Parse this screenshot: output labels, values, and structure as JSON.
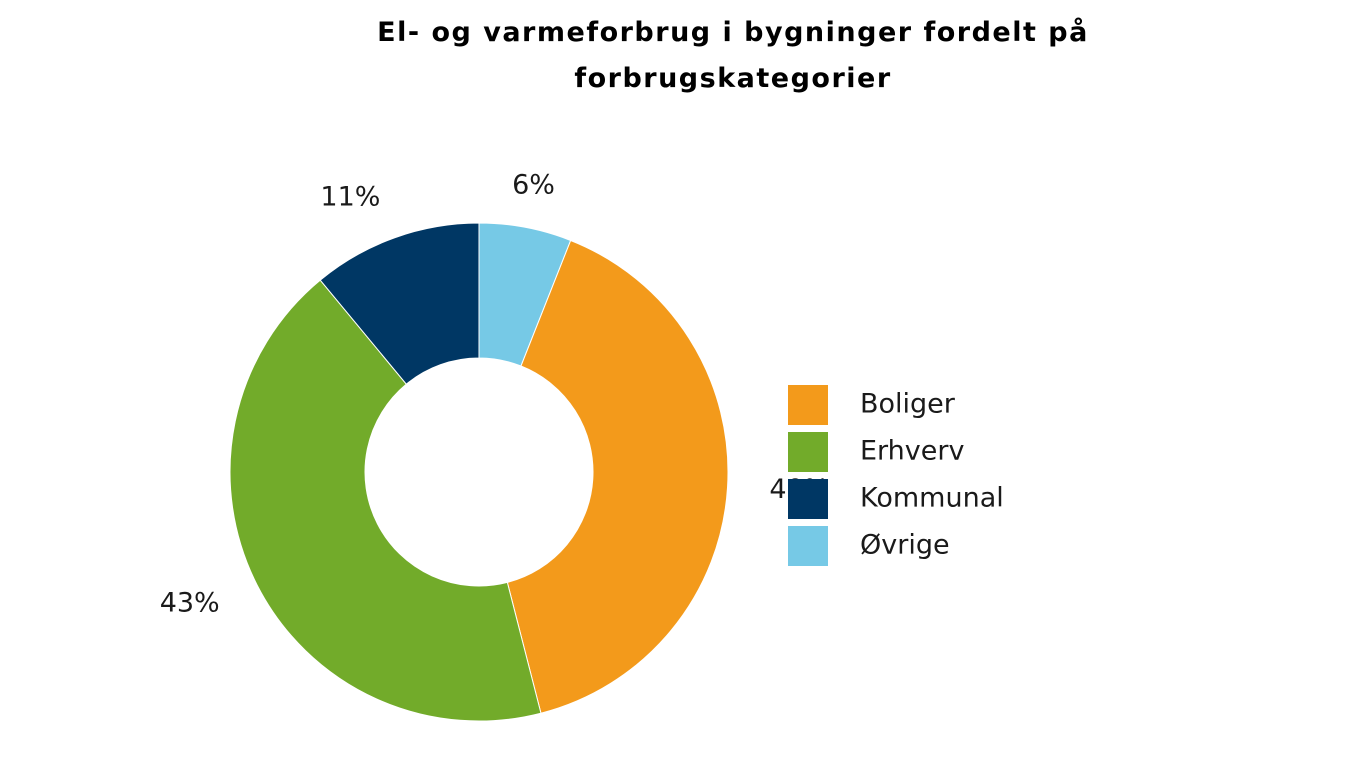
{
  "chart_data": {
    "type": "pie",
    "title": "El- og varmeforbrug i bygninger fordelt på forbrugskategorier",
    "categories": [
      "Boliger",
      "Erhverv",
      "Kommunal",
      "Øvrige"
    ],
    "values": [
      40,
      43,
      11,
      6
    ],
    "labels": [
      "40%",
      "43%",
      "11%",
      "6%"
    ],
    "colors": [
      "#f39a1b",
      "#72ab2a",
      "#003764",
      "#76c9e6"
    ],
    "donut": true,
    "legend_position": "right"
  }
}
